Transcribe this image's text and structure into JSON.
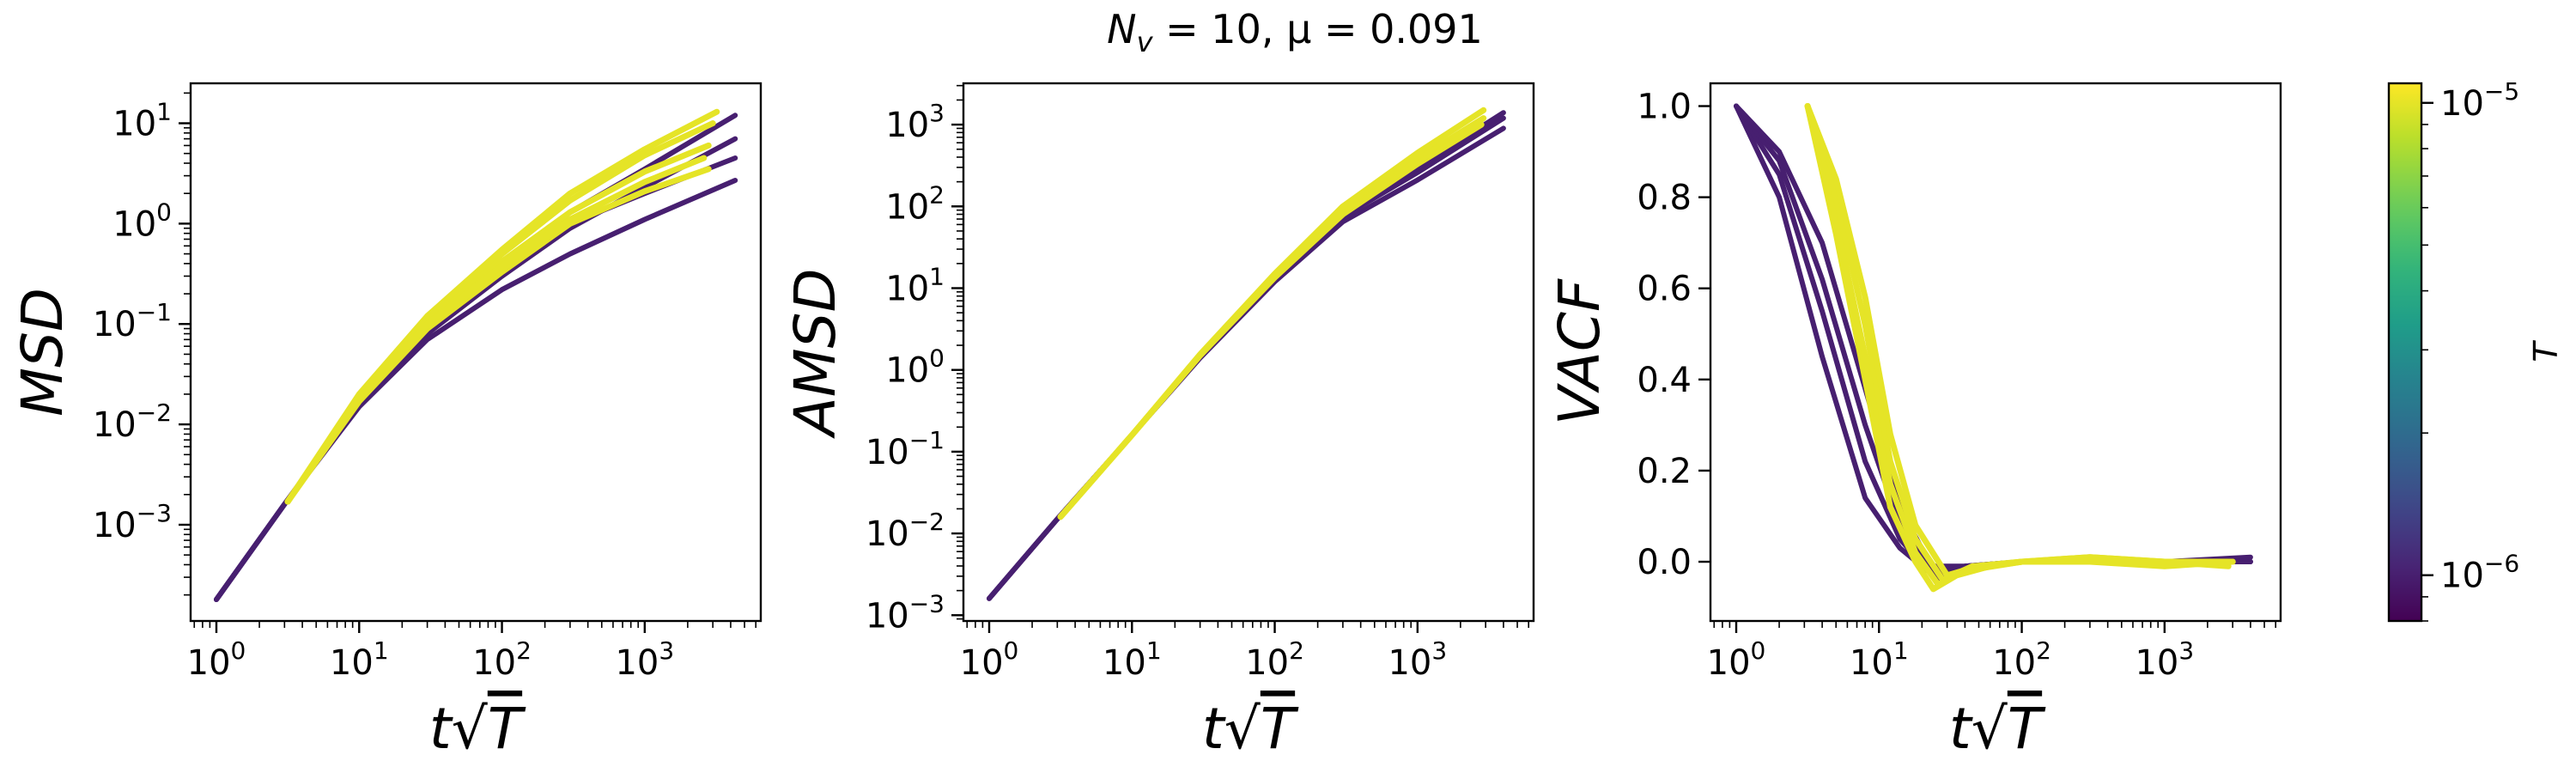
{
  "figure": {
    "title": "N_v = 10, μ = 0.091",
    "title_parts": {
      "a": "N",
      "sub": "v",
      "b": " = 10, μ = 0.091"
    },
    "colormap": "viridis",
    "colors": {
      "low": "#440154",
      "high": "#fde725"
    }
  },
  "chart_data": [
    {
      "name": "MSD",
      "type": "line",
      "xlabel": "t√T",
      "ylabel": "MSD",
      "xscale": "log",
      "yscale": "log",
      "xlim": [
        0.66,
        6500
      ],
      "ylim": [
        0.00011,
        25
      ],
      "xticks": [
        "10^0",
        "10^1",
        "10^2",
        "10^3"
      ],
      "yticks": [
        "10^-3",
        "10^-2",
        "10^-1",
        "10^0",
        "10^1"
      ],
      "grid": false,
      "series": [
        {
          "T": "1e-6",
          "points": [
            [
              1,
              0.00018
            ],
            [
              3,
              0.0016
            ],
            [
              10,
              0.015
            ],
            [
              30,
              0.07
            ],
            [
              100,
              0.22
            ],
            [
              300,
              0.5
            ],
            [
              1000,
              1.1
            ],
            [
              4300,
              2.7
            ]
          ]
        },
        {
          "T": "1e-6",
          "points": [
            [
              1,
              0.00018
            ],
            [
              3,
              0.0016
            ],
            [
              10,
              0.016
            ],
            [
              30,
              0.08
            ],
            [
              100,
              0.3
            ],
            [
              300,
              0.9
            ],
            [
              1000,
              2.3
            ],
            [
              4300,
              7.0
            ]
          ]
        },
        {
          "T": "1e-6",
          "points": [
            [
              1,
              0.00018
            ],
            [
              3,
              0.0016
            ],
            [
              10,
              0.017
            ],
            [
              30,
              0.09
            ],
            [
              100,
              0.36
            ],
            [
              300,
              1.3
            ],
            [
              1000,
              3.5
            ],
            [
              4300,
              12.0
            ]
          ]
        },
        {
          "T": "1e-6",
          "points": [
            [
              1,
              0.00018
            ],
            [
              3,
              0.0016
            ],
            [
              10,
              0.016
            ],
            [
              30,
              0.085
            ],
            [
              100,
              0.32
            ],
            [
              300,
              1.0
            ],
            [
              1000,
              2.0
            ],
            [
              4300,
              4.5
            ]
          ]
        },
        {
          "T": "1e-5",
          "points": [
            [
              3.16,
              0.0017
            ],
            [
              10,
              0.017
            ],
            [
              30,
              0.09
            ],
            [
              100,
              0.33
            ],
            [
              300,
              1.0
            ],
            [
              1000,
              2.1
            ],
            [
              2800,
              3.5
            ]
          ]
        },
        {
          "T": "1e-5",
          "points": [
            [
              3.16,
              0.0017
            ],
            [
              10,
              0.018
            ],
            [
              30,
              0.1
            ],
            [
              100,
              0.42
            ],
            [
              300,
              1.3
            ],
            [
              1000,
              3.3
            ],
            [
              2800,
              6.0
            ]
          ]
        },
        {
          "T": "1e-5",
          "points": [
            [
              3.16,
              0.0017
            ],
            [
              10,
              0.019
            ],
            [
              30,
              0.11
            ],
            [
              100,
              0.5
            ],
            [
              300,
              1.7
            ],
            [
              1000,
              4.8
            ],
            [
              3000,
              10.0
            ]
          ]
        },
        {
          "T": "1e-5",
          "points": [
            [
              3.16,
              0.0017
            ],
            [
              10,
              0.02
            ],
            [
              30,
              0.12
            ],
            [
              100,
              0.55
            ],
            [
              300,
              2.0
            ],
            [
              1000,
              5.5
            ],
            [
              3200,
              13.0
            ]
          ]
        },
        {
          "T": "1e-5",
          "points": [
            [
              3.16,
              0.0017
            ],
            [
              10,
              0.018
            ],
            [
              30,
              0.1
            ],
            [
              100,
              0.38
            ],
            [
              300,
              1.1
            ],
            [
              1000,
              2.6
            ],
            [
              2600,
              4.5
            ]
          ]
        }
      ]
    },
    {
      "name": "AMSD",
      "type": "line",
      "xlabel": "t√T",
      "ylabel": "AMSD",
      "xscale": "log",
      "yscale": "log",
      "xlim": [
        0.66,
        6500
      ],
      "ylim": [
        0.00085,
        3200
      ],
      "xticks": [
        "10^0",
        "10^1",
        "10^2",
        "10^3"
      ],
      "yticks": [
        "10^-3",
        "10^-2",
        "10^-1",
        "10^0",
        "10^1",
        "10^2",
        "10^3"
      ],
      "grid": false,
      "series": [
        {
          "T": "1e-6",
          "points": [
            [
              1,
              0.0016
            ],
            [
              3,
              0.015
            ],
            [
              10,
              0.16
            ],
            [
              30,
              1.4
            ],
            [
              100,
              12
            ],
            [
              300,
              65
            ],
            [
              1000,
              210
            ],
            [
              4000,
              900
            ]
          ]
        },
        {
          "T": "1e-6",
          "points": [
            [
              1,
              0.0016
            ],
            [
              3,
              0.015
            ],
            [
              10,
              0.16
            ],
            [
              30,
              1.45
            ],
            [
              100,
              13
            ],
            [
              300,
              75
            ],
            [
              1000,
              260
            ],
            [
              4000,
              1200
            ]
          ]
        },
        {
          "T": "1e-6",
          "points": [
            [
              1,
              0.0016
            ],
            [
              3,
              0.015
            ],
            [
              10,
              0.16
            ],
            [
              30,
              1.5
            ],
            [
              100,
              14
            ],
            [
              300,
              85
            ],
            [
              1000,
              300
            ],
            [
              4000,
              1400
            ]
          ]
        },
        {
          "T": "1e-5",
          "points": [
            [
              3.16,
              0.016
            ],
            [
              10,
              0.16
            ],
            [
              30,
              1.5
            ],
            [
              100,
              14
            ],
            [
              300,
              90
            ],
            [
              1000,
              380
            ],
            [
              2900,
              1200
            ]
          ]
        },
        {
          "T": "1e-5",
          "points": [
            [
              3.16,
              0.016
            ],
            [
              10,
              0.16
            ],
            [
              30,
              1.55
            ],
            [
              100,
              15
            ],
            [
              300,
              100
            ],
            [
              1000,
              450
            ],
            [
              2900,
              1500
            ]
          ]
        },
        {
          "T": "1e-5",
          "points": [
            [
              3.16,
              0.016
            ],
            [
              10,
              0.16
            ],
            [
              30,
              1.5
            ],
            [
              100,
              13.5
            ],
            [
              300,
              80
            ],
            [
              1000,
              330
            ],
            [
              2800,
              1000
            ]
          ]
        }
      ]
    },
    {
      "name": "VACF",
      "type": "line",
      "xlabel": "t√T",
      "ylabel": "VACF",
      "xscale": "log",
      "yscale": "linear",
      "xlim": [
        0.66,
        6500
      ],
      "ylim": [
        -0.13,
        1.05
      ],
      "xticks": [
        "10^0",
        "10^1",
        "10^2",
        "10^3"
      ],
      "yticks": [
        "0.0",
        "0.2",
        "0.4",
        "0.6",
        "0.8",
        "1.0"
      ],
      "grid": false,
      "series": [
        {
          "T": "1e-6",
          "points": [
            [
              1,
              1.0
            ],
            [
              2,
              0.8
            ],
            [
              4,
              0.45
            ],
            [
              8,
              0.14
            ],
            [
              14,
              0.03
            ],
            [
              20,
              -0.01
            ],
            [
              40,
              -0.01
            ],
            [
              100,
              0.0
            ],
            [
              300,
              0.0
            ],
            [
              1000,
              0.0
            ],
            [
              4000,
              0.0
            ]
          ]
        },
        {
          "T": "1e-6",
          "points": [
            [
              1,
              1.0
            ],
            [
              2,
              0.85
            ],
            [
              4,
              0.55
            ],
            [
              8,
              0.22
            ],
            [
              14,
              0.05
            ],
            [
              22,
              -0.02
            ],
            [
              40,
              -0.01
            ],
            [
              100,
              0.0
            ],
            [
              300,
              0.0
            ],
            [
              1000,
              0.0
            ],
            [
              4000,
              0.0
            ]
          ]
        },
        {
          "T": "1e-6",
          "points": [
            [
              1,
              1.0
            ],
            [
              2,
              0.88
            ],
            [
              4,
              0.62
            ],
            [
              8,
              0.3
            ],
            [
              14,
              0.08
            ],
            [
              24,
              -0.03
            ],
            [
              40,
              -0.01
            ],
            [
              100,
              0.0
            ],
            [
              300,
              0.0
            ],
            [
              1000,
              0.0
            ],
            [
              4000,
              0.0
            ]
          ]
        },
        {
          "T": "1e-6",
          "points": [
            [
              1,
              1.0
            ],
            [
              2,
              0.9
            ],
            [
              4,
              0.7
            ],
            [
              8,
              0.38
            ],
            [
              14,
              0.12
            ],
            [
              26,
              -0.04
            ],
            [
              40,
              -0.02
            ],
            [
              100,
              0.0
            ],
            [
              300,
              0.01
            ],
            [
              1000,
              0.0
            ],
            [
              4000,
              0.01
            ]
          ]
        },
        {
          "T": "1e-5",
          "points": [
            [
              3.16,
              1.0
            ],
            [
              5,
              0.72
            ],
            [
              8,
              0.4
            ],
            [
              12,
              0.12
            ],
            [
              18,
              0.0
            ],
            [
              24,
              -0.06
            ],
            [
              35,
              -0.03
            ],
            [
              60,
              -0.01
            ],
            [
              100,
              0.0
            ],
            [
              300,
              0.01
            ],
            [
              1000,
              0.0
            ],
            [
              2800,
              -0.01
            ]
          ]
        },
        {
          "T": "1e-5",
          "points": [
            [
              3.16,
              1.0
            ],
            [
              5,
              0.75
            ],
            [
              8,
              0.45
            ],
            [
              12,
              0.17
            ],
            [
              18,
              0.02
            ],
            [
              26,
              -0.05
            ],
            [
              40,
              -0.02
            ],
            [
              100,
              0.0
            ],
            [
              300,
              0.0
            ],
            [
              1000,
              -0.01
            ],
            [
              3000,
              0.0
            ]
          ]
        },
        {
          "T": "1e-5",
          "points": [
            [
              3.16,
              1.0
            ],
            [
              5,
              0.8
            ],
            [
              8,
              0.52
            ],
            [
              12,
              0.22
            ],
            [
              18,
              0.05
            ],
            [
              28,
              -0.04
            ],
            [
              45,
              -0.01
            ],
            [
              100,
              0.0
            ],
            [
              300,
              0.01
            ],
            [
              1000,
              0.0
            ],
            [
              3000,
              0.0
            ]
          ]
        },
        {
          "T": "1e-5",
          "points": [
            [
              3.16,
              1.0
            ],
            [
              5,
              0.84
            ],
            [
              8,
              0.58
            ],
            [
              12,
              0.28
            ],
            [
              18,
              0.08
            ],
            [
              30,
              -0.03
            ],
            [
              50,
              -0.01
            ],
            [
              100,
              0.0
            ],
            [
              300,
              0.0
            ],
            [
              1000,
              0.0
            ],
            [
              2800,
              0.0
            ]
          ]
        }
      ]
    }
  ],
  "colorbar": {
    "label": "T",
    "scale": "log",
    "range": [
      8e-07,
      1.1e-05
    ],
    "ticks": [
      {
        "value": 1e-06,
        "label": "10^-6"
      },
      {
        "value": 1e-05,
        "label": "10^-5"
      }
    ]
  }
}
